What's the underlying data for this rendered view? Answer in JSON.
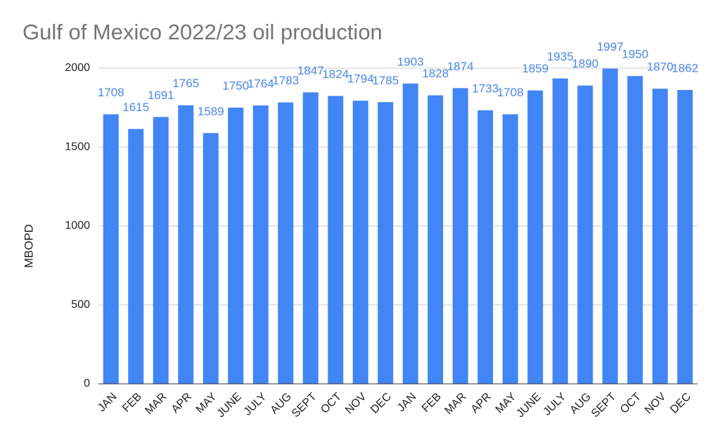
{
  "chart_data": {
    "type": "bar",
    "title": "Gulf of Mexico 2022/23 oil production",
    "y_label": "MBOPD",
    "categories": [
      "JAN",
      "FEB",
      "MAR",
      "APR",
      "MAY",
      "JUNE",
      "JULY",
      "AUG",
      "SEPT",
      "OCT",
      "NOV",
      "DEC",
      "JAN",
      "FEB",
      "MAR",
      "APR",
      "MAY",
      "JUNE",
      "JULY",
      "AUG",
      "SEPT",
      "OCT",
      "NOV",
      "DEC"
    ],
    "values": [
      1708,
      1615,
      1691,
      1765,
      1589,
      1750,
      1764,
      1783,
      1847,
      1824,
      1794,
      1785,
      1903,
      1828,
      1874,
      1733,
      1708,
      1859,
      1935,
      1890,
      1997,
      1950,
      1870,
      1862
    ],
    "color": "#4285f4",
    "label_color": "#4a86e8",
    "ylim": [
      0,
      2000
    ],
    "yticks": [
      0,
      500,
      1000,
      1500,
      2000
    ],
    "grid": true
  }
}
